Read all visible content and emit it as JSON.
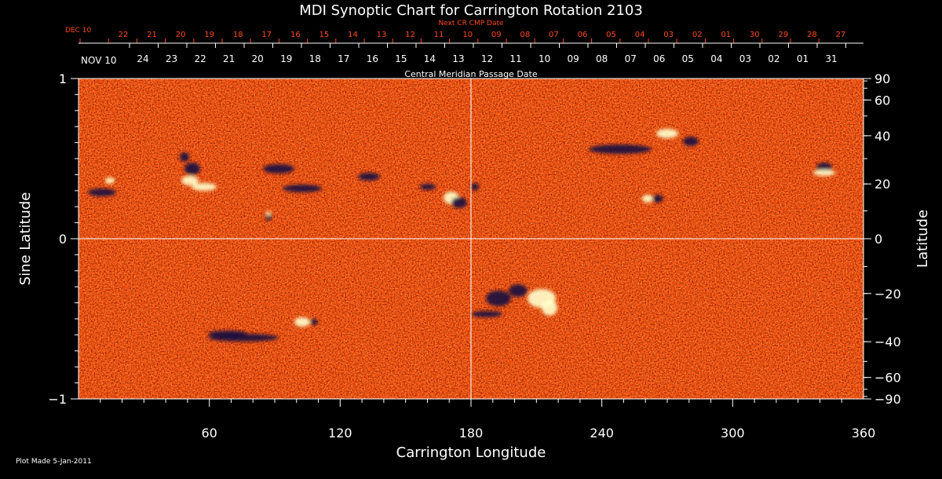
{
  "chart_data": {
    "type": "heatmap",
    "title": "MDI Synoptic Chart for Carrington Rotation 2103",
    "xlabel": "Carrington Longitude",
    "ylabel_left": "Sine Latitude",
    "ylabel_right": "Latitude",
    "xlim": [
      0,
      360
    ],
    "ylim": [
      -1,
      1
    ],
    "x_ticks": [
      60,
      120,
      180,
      240,
      300,
      360
    ],
    "y_ticks_left": [
      "1",
      "0",
      "−1"
    ],
    "y_ticks_right": [
      90,
      60,
      40,
      20,
      0,
      -20,
      -40,
      -60,
      -90
    ],
    "top_axis_1": {
      "label": "Next CR CMP Date",
      "month_label": "DEC 10",
      "days": [
        "22",
        "21",
        "20",
        "19",
        "18",
        "17",
        "16",
        "15",
        "14",
        "13",
        "12",
        "11",
        "10",
        "09",
        "08",
        "07",
        "06",
        "05",
        "04",
        "03",
        "02",
        "01",
        "30",
        "29",
        "28",
        "27"
      ]
    },
    "top_axis_2": {
      "label": "Central Meridian Passage Date",
      "month_label": "NOV 10",
      "days": [
        "24",
        "23",
        "22",
        "21",
        "20",
        "19",
        "18",
        "17",
        "16",
        "15",
        "14",
        "13",
        "12",
        "11",
        "10",
        "09",
        "08",
        "07",
        "06",
        "05",
        "04",
        "03",
        "02",
        "01",
        "31"
      ]
    },
    "background_color": "#ff5a14",
    "positive_color": "#ffffcc",
    "negative_color": "#1a1040",
    "footer": "Plot Made  5-Jan-2011"
  }
}
